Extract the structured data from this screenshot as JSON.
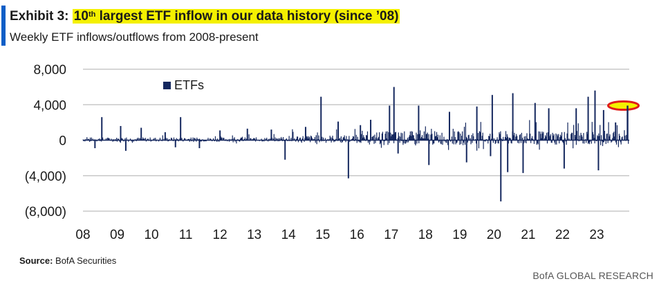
{
  "header": {
    "exhibit_label": "Exhibit 3:",
    "title_pre": "10",
    "title_sup": "th",
    "title_post": " largest ETF inflow in our data history (since ’08)",
    "subtitle": "Weekly ETF inflows/outflows from 2008-present"
  },
  "footer": {
    "source_label": "Source:",
    "source_value": "BofA Securities",
    "brand": "BofA GLOBAL RESEARCH"
  },
  "colors": {
    "bar": "#14275e",
    "grid": "#c8c8c8",
    "highlight": "#f4f000",
    "circle": "#e01b1b",
    "accent": "#0b5ec7"
  },
  "chart_data": {
    "type": "bar",
    "title": "Weekly ETF inflows/outflows from 2008-present",
    "series": [
      {
        "name": "ETFs",
        "points": [
          {
            "x": 2008.55,
            "y": 2600
          },
          {
            "x": 2008.35,
            "y": -900
          },
          {
            "x": 2009.1,
            "y": 1600
          },
          {
            "x": 2009.25,
            "y": -1200
          },
          {
            "x": 2009.7,
            "y": 1400
          },
          {
            "x": 2010.4,
            "y": 900
          },
          {
            "x": 2010.7,
            "y": -800
          },
          {
            "x": 2010.85,
            "y": 2600
          },
          {
            "x": 2011.4,
            "y": -900
          },
          {
            "x": 2012.0,
            "y": 1100
          },
          {
            "x": 2012.8,
            "y": 1300
          },
          {
            "x": 2013.5,
            "y": 1200
          },
          {
            "x": 2013.9,
            "y": -2200
          },
          {
            "x": 2014.5,
            "y": 1500
          },
          {
            "x": 2014.95,
            "y": 4900
          },
          {
            "x": 2015.45,
            "y": 2100
          },
          {
            "x": 2015.75,
            "y": -4300
          },
          {
            "x": 2016.1,
            "y": 1700
          },
          {
            "x": 2016.4,
            "y": 2300
          },
          {
            "x": 2016.95,
            "y": 3900
          },
          {
            "x": 2017.08,
            "y": 6000
          },
          {
            "x": 2017.2,
            "y": -1500
          },
          {
            "x": 2017.8,
            "y": 3900
          },
          {
            "x": 2018.1,
            "y": -2800
          },
          {
            "x": 2018.7,
            "y": 3200
          },
          {
            "x": 2019.2,
            "y": -2500
          },
          {
            "x": 2019.5,
            "y": 3800
          },
          {
            "x": 2019.9,
            "y": -1800
          },
          {
            "x": 2019.95,
            "y": 5100
          },
          {
            "x": 2020.2,
            "y": -6900
          },
          {
            "x": 2020.4,
            "y": -3600
          },
          {
            "x": 2020.55,
            "y": 5300
          },
          {
            "x": 2020.85,
            "y": -3700
          },
          {
            "x": 2021.2,
            "y": 4200
          },
          {
            "x": 2021.6,
            "y": 3600
          },
          {
            "x": 2022.05,
            "y": -3200
          },
          {
            "x": 2022.4,
            "y": 3600
          },
          {
            "x": 2022.75,
            "y": 4900
          },
          {
            "x": 2022.95,
            "y": 5600
          },
          {
            "x": 2023.05,
            "y": -3400
          },
          {
            "x": 2023.2,
            "y": 3400
          },
          {
            "x": 2023.55,
            "y": 2000
          },
          {
            "x": 2023.9,
            "y": 3900
          }
        ]
      }
    ],
    "x_tick_labels": [
      "08",
      "09",
      "10",
      "11",
      "12",
      "13",
      "14",
      "15",
      "16",
      "17",
      "18",
      "19",
      "20",
      "21",
      "22",
      "23"
    ],
    "x_ticks": [
      2008,
      2009,
      2010,
      2011,
      2012,
      2013,
      2014,
      2015,
      2016,
      2017,
      2018,
      2019,
      2020,
      2021,
      2022,
      2023
    ],
    "xlim": [
      2008,
      2023.95
    ],
    "y_ticks": [
      8000,
      4000,
      0,
      -4000,
      -8000
    ],
    "y_tick_labels": [
      "8,000",
      "4,000",
      "0",
      "(4,000)",
      "(8,000)"
    ],
    "ylim": [
      -8000,
      8000
    ],
    "grid": true,
    "legend_position": "top-left",
    "highlight_point": {
      "x": 2023.9,
      "y": 3900
    }
  }
}
